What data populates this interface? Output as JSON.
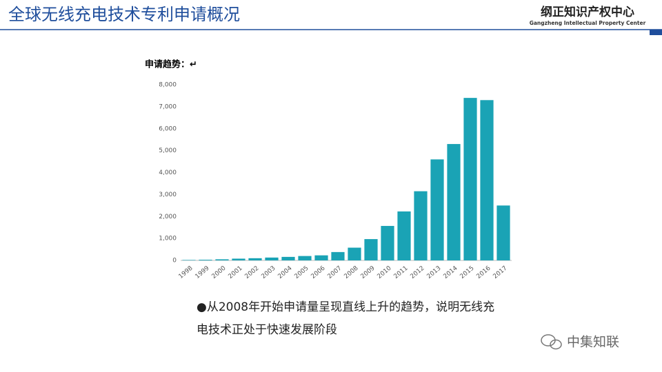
{
  "header": {
    "title": "全球无线充电技术专利申请概况",
    "logo_cn": "纲正知识产权中心",
    "logo_en": "Gangzheng Intellectual Property Center"
  },
  "chart_data": {
    "type": "bar",
    "title": "申请趋势：↵",
    "categories": [
      "1998",
      "1999",
      "2000",
      "2001",
      "2002",
      "2003",
      "2004",
      "2005",
      "2006",
      "2007",
      "2008",
      "2009",
      "2010",
      "2011",
      "2012",
      "2013",
      "2014",
      "2015",
      "2016",
      "2017"
    ],
    "values": [
      20,
      30,
      50,
      80,
      100,
      130,
      160,
      200,
      230,
      380,
      580,
      970,
      1570,
      2230,
      3150,
      4600,
      5300,
      7400,
      7300,
      2500
    ],
    "color": "#1aa3b5",
    "ylim": [
      0,
      8000
    ],
    "yticks": [
      0,
      {
        "value": 1000,
        "label": "1,000"
      },
      {
        "value": 2000,
        "label": "2,000"
      },
      {
        "value": 3000,
        "label": "3,000"
      },
      {
        "value": 4000,
        "label": "4,000"
      },
      {
        "value": 5000,
        "label": "5,000"
      },
      {
        "value": 6000,
        "label": "6,000"
      },
      {
        "value": 7000,
        "label": "7,000"
      },
      {
        "value": 8000,
        "label": "8,000"
      }
    ],
    "grid": false
  },
  "bullet": "●从2008年开始申请量呈现直线上升的趋势，说明无线充电技术正处于快速发展阶段",
  "watermark": "中集知联"
}
